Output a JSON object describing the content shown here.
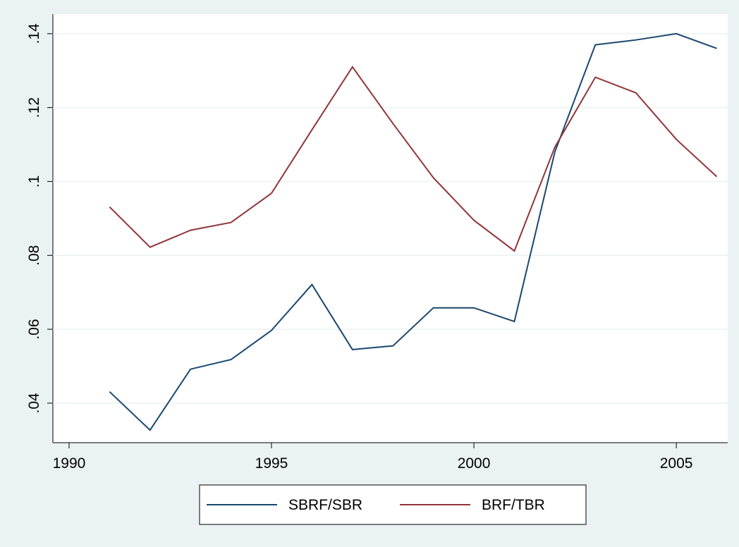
{
  "chart_data": {
    "type": "line",
    "x": [
      1991,
      1992,
      1993,
      1994,
      1995,
      1996,
      1997,
      1998,
      1999,
      2000,
      2001,
      2002,
      2003,
      2004,
      2005,
      2006
    ],
    "series": [
      {
        "name": "SBRF/SBR",
        "color": "#1a476f",
        "values": [
          0.0431,
          0.0327,
          0.0492,
          0.0518,
          0.0597,
          0.0721,
          0.0545,
          0.0555,
          0.0658,
          0.0658,
          0.0621,
          0.108,
          0.137,
          0.1383,
          0.14,
          0.136
        ]
      },
      {
        "name": "BRF/TBR",
        "color": "#90353b",
        "values": [
          0.0931,
          0.0822,
          0.0868,
          0.0889,
          0.0968,
          0.114,
          0.131,
          0.1157,
          0.101,
          0.0895,
          0.0812,
          0.1093,
          0.1282,
          0.124,
          0.1114,
          0.1013
        ]
      }
    ],
    "xlim": [
      1989.6,
      2006.27
    ],
    "xticks": [
      1990,
      1995,
      2000,
      2005
    ],
    "ylim": [
      0.0293,
      0.1453
    ],
    "yticks": [
      {
        "value": 0.04,
        "label": ".04"
      },
      {
        "value": 0.06,
        "label": ".06"
      },
      {
        "value": 0.08,
        "label": ".08"
      },
      {
        "value": 0.1,
        "label": ".1"
      },
      {
        "value": 0.12,
        "label": ".12"
      },
      {
        "value": 0.14,
        "label": ".14"
      }
    ],
    "grid": true
  }
}
